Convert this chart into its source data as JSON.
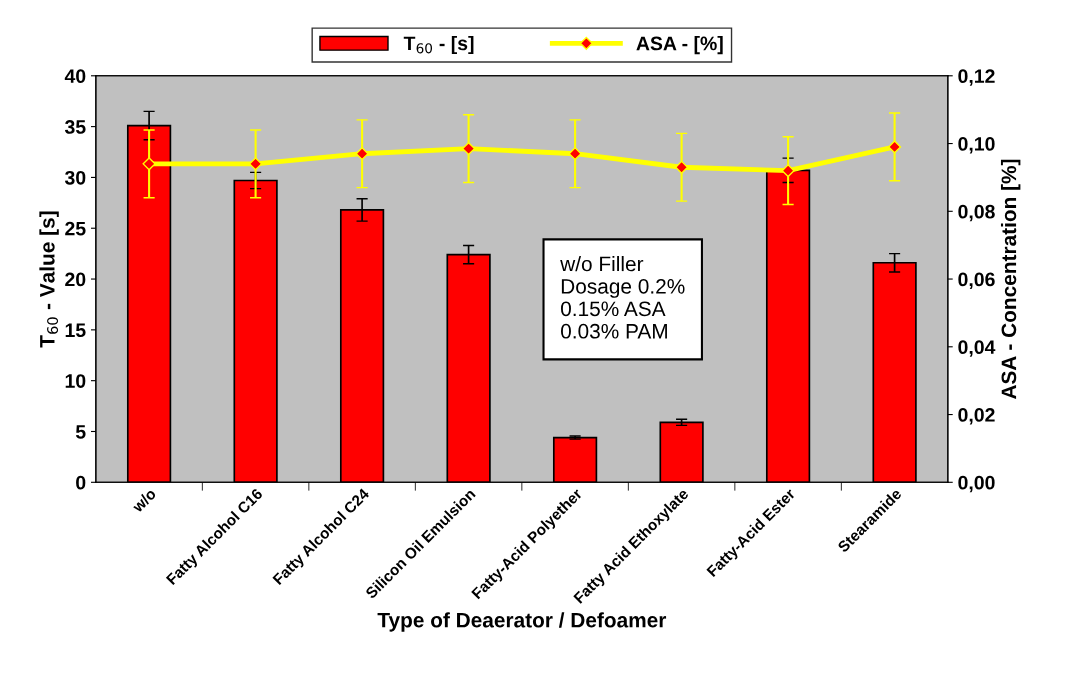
{
  "chart_data": {
    "type": "bar",
    "categories": [
      "w/o",
      "Fatty Alcohol C16",
      "Fatty Alcohol C24",
      "Silicon Oil Emulsion",
      "Fatty-Acid Polyether",
      "Fatty Acid Ethoxylate",
      "Fatty-Acid Ester",
      "Stearamide"
    ],
    "series": [
      {
        "name": "T$_{60}$ - [s]",
        "color": "#ff0000",
        "values": [
          35.1,
          29.7,
          26.8,
          22.4,
          4.4,
          5.9,
          30.7,
          21.6
        ],
        "errors": [
          1.4,
          0.8,
          1.1,
          0.9,
          0.15,
          0.3,
          1.2,
          0.9
        ]
      },
      {
        "name": "ASA - [%]",
        "type": "line",
        "axis": "y2",
        "color": "#ffff00",
        "marker": "diamond",
        "values": [
          0.094,
          0.094,
          0.097,
          0.0985,
          0.097,
          0.093,
          0.092,
          0.099
        ],
        "errors": [
          0.01,
          0.01,
          0.01,
          0.01,
          0.01,
          0.01,
          0.01,
          0.01
        ]
      }
    ],
    "xlabel": "Type of Deaerator / Defoamer",
    "ylabel": "T$_{60}$ - Value [s]",
    "y2label": "ASA - Concentration [%]",
    "ylim": [
      0,
      40
    ],
    "yticks": [
      0,
      5,
      10,
      15,
      20,
      25,
      30,
      35,
      40
    ],
    "y2lim": [
      0,
      0.12
    ],
    "y2ticks": [
      {
        "value": 0,
        "label": "0,00"
      },
      {
        "value": 0.02,
        "label": "0,02"
      },
      {
        "value": 0.04,
        "label": "0,04"
      },
      {
        "value": 0.06,
        "label": "0,06"
      },
      {
        "value": 0.08,
        "label": "0,08"
      },
      {
        "value": 0.1,
        "label": "0,10"
      },
      {
        "value": 0.12,
        "label": "0,12"
      }
    ],
    "annotations": [
      "w/o Filler\nDosage 0.2%\n0.15% ASA\n0.03% PAM"
    ],
    "legend": "top",
    "grid": false
  }
}
